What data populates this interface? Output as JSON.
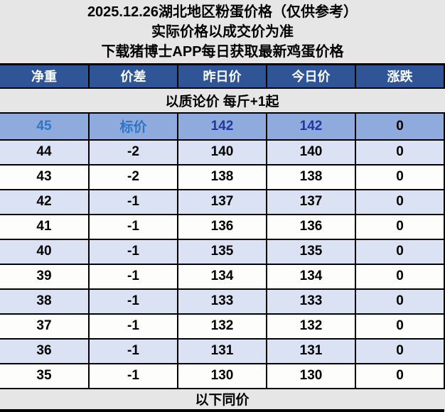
{
  "header": {
    "lines": [
      "2025.12.26湖北地区粉蛋价格（仅供参考）",
      "实际价格以成交价为准",
      "下载猪博士APP每日获取最新鸡蛋价格"
    ]
  },
  "table": {
    "columns": [
      "净重",
      "价差",
      "昨日价",
      "今日价",
      "涨跌"
    ],
    "band_top": "以质论价 每斤+1起",
    "highlight_row": {
      "net_weight": "45",
      "diff_label": "标价",
      "yesterday": "142",
      "today": "142",
      "change": "0"
    },
    "rows": [
      [
        "44",
        "-2",
        "140",
        "140",
        "0"
      ],
      [
        "43",
        "-2",
        "138",
        "138",
        "0"
      ],
      [
        "42",
        "-1",
        "137",
        "137",
        "0"
      ],
      [
        "41",
        "-1",
        "136",
        "136",
        "0"
      ],
      [
        "40",
        "-1",
        "135",
        "135",
        "0"
      ],
      [
        "39",
        "-1",
        "134",
        "134",
        "0"
      ],
      [
        "38",
        "-1",
        "133",
        "133",
        "0"
      ],
      [
        "37",
        "-1",
        "132",
        "132",
        "0"
      ],
      [
        "36",
        "-1",
        "131",
        "131",
        "0"
      ],
      [
        "35",
        "-1",
        "130",
        "130",
        "0"
      ]
    ],
    "band_bottom": "以下同价"
  },
  "colors": {
    "page_bg": "#e7e6e6",
    "header_bg": "#2f5597",
    "header_fg": "#ffffff",
    "band_bg": "#e7e6e6",
    "highlight_bg": "#8faadc",
    "row_alt": "#dbe2f3",
    "row_plain": "#fdfdfc",
    "accent_blue": "#2e75c6",
    "accent_navy": "#20389e",
    "line": "#000000"
  }
}
